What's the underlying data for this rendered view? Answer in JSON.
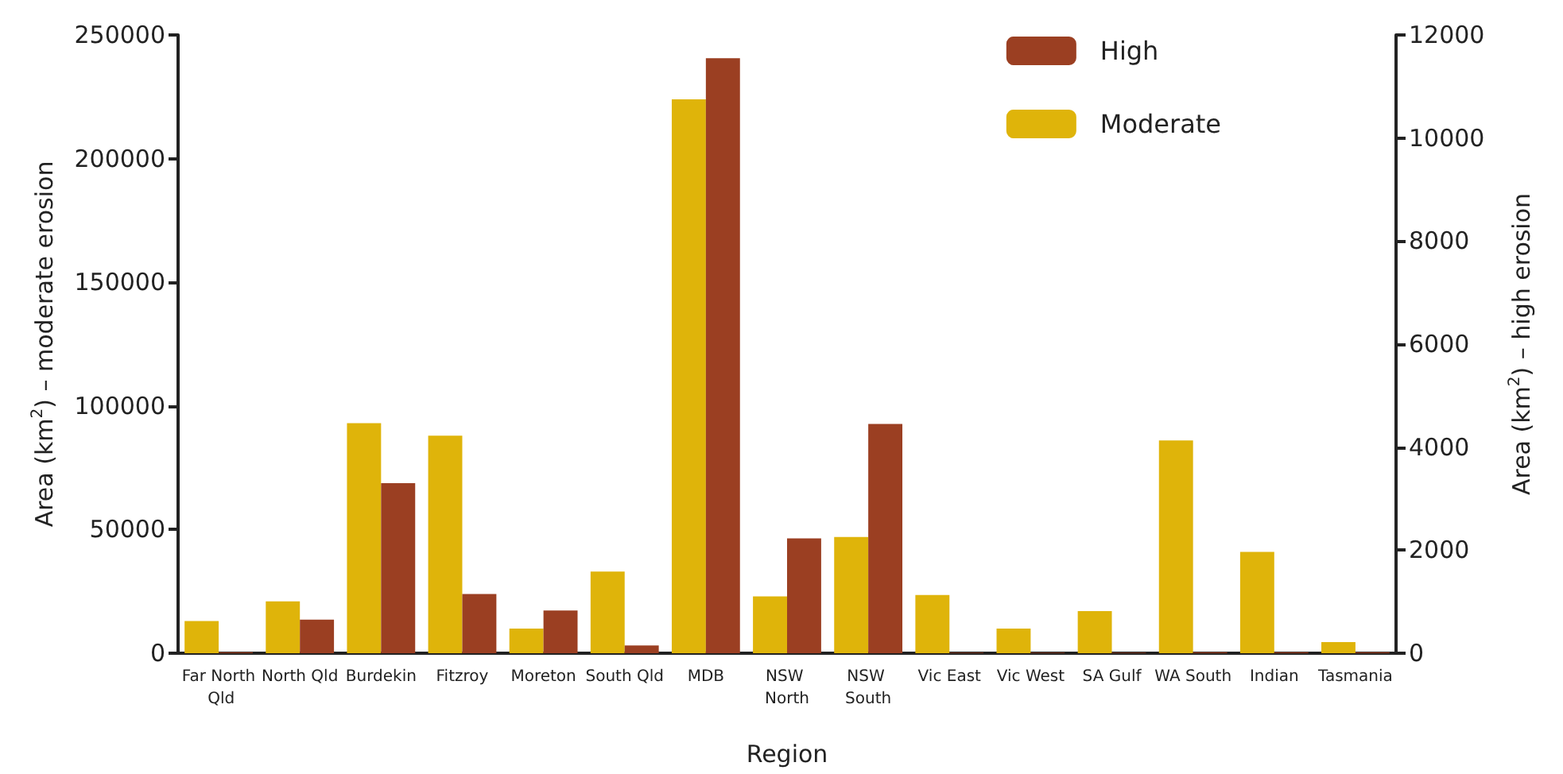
{
  "chart_data": {
    "type": "bar",
    "xlabel": "Region",
    "ylabel": "Area (km$^{2}$) – moderate erosion",
    "y2label": "Area (km$^{2}$) – high erosion",
    "categories": [
      "Far North Qld",
      "North Qld",
      "Burdekin",
      "Fitzroy",
      "Moreton",
      "South Qld",
      "MDB",
      "NSW North",
      "NSW South",
      "Vic East",
      "Vic West",
      "SA Gulf",
      "WA South",
      "Indian",
      "Tasmania"
    ],
    "series": [
      {
        "name": "Moderate",
        "color": "#dfb40a",
        "values": [
          13000,
          21000,
          93000,
          88000,
          10000,
          33000,
          224000,
          23000,
          47000,
          23500,
          10000,
          17000,
          86000,
          41000,
          4500
        ]
      },
      {
        "name": "High",
        "color": "#9b3f22",
        "axis": "y2",
        "values": [
          20,
          650,
          3300,
          1150,
          830,
          150,
          11550,
          2230,
          4450,
          10,
          10,
          10,
          20,
          20,
          20
        ]
      }
    ],
    "ylim": [
      0,
      250000
    ],
    "yticks": [
      0,
      50000,
      100000,
      150000,
      200000,
      250000
    ],
    "y2lim": [
      0,
      12000
    ],
    "y2ticks": [
      0,
      2000,
      4000,
      6000,
      8000,
      10000,
      12000
    ],
    "grid": false,
    "legend": "top right"
  }
}
